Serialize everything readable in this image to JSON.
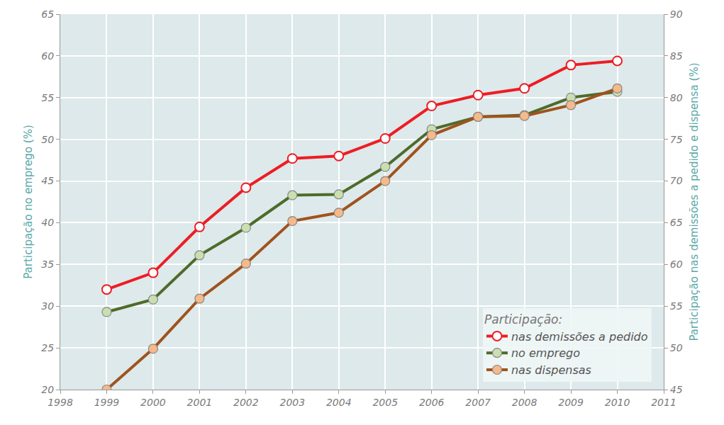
{
  "chart_data": {
    "type": "line",
    "x": [
      1999,
      2000,
      2001,
      2002,
      2003,
      2004,
      2005,
      2006,
      2007,
      2008,
      2009,
      2010
    ],
    "xlim": [
      1998,
      2011
    ],
    "xticks": [
      1998,
      1999,
      2000,
      2001,
      2002,
      2003,
      2004,
      2005,
      2006,
      2007,
      2008,
      2009,
      2010,
      2011
    ],
    "ylim": [
      20,
      65
    ],
    "yticks": [
      20,
      25,
      30,
      35,
      40,
      45,
      50,
      55,
      60,
      65
    ],
    "y2lim": [
      45,
      90
    ],
    "y2ticks": [
      45,
      50,
      55,
      60,
      65,
      70,
      75,
      80,
      85,
      90
    ],
    "ylabel": "Participação no emprego (%)",
    "y2label": "Participação nas demissões a pedido e dispensa (%)",
    "legend_title": "Participação:",
    "legend": "lower right",
    "grid": true,
    "series": [
      {
        "name": "nas demissões a pedido",
        "color": "#ee1c24",
        "axis": "y2",
        "marker": "circle",
        "line_style": "solid",
        "values": [
          57.0,
          59.0,
          64.5,
          69.2,
          72.7,
          73.0,
          75.1,
          79.0,
          80.3,
          81.1,
          83.9,
          84.4
        ]
      },
      {
        "name": "no emprego",
        "color": "#4e6b2a",
        "axis": "y",
        "marker": "circle",
        "line_style": "solid",
        "values": [
          29.3,
          30.8,
          36.1,
          39.4,
          43.3,
          43.4,
          46.7,
          51.2,
          52.7,
          52.9,
          55.0,
          55.7
        ]
      },
      {
        "name": "nas dispensas",
        "color": "#a0521c",
        "axis": "y2",
        "marker": "circle",
        "line_style": "solid",
        "values": [
          45.0,
          49.9,
          55.9,
          60.1,
          65.2,
          66.2,
          70.0,
          75.5,
          77.7,
          77.8,
          79.1,
          81.1
        ]
      }
    ]
  }
}
